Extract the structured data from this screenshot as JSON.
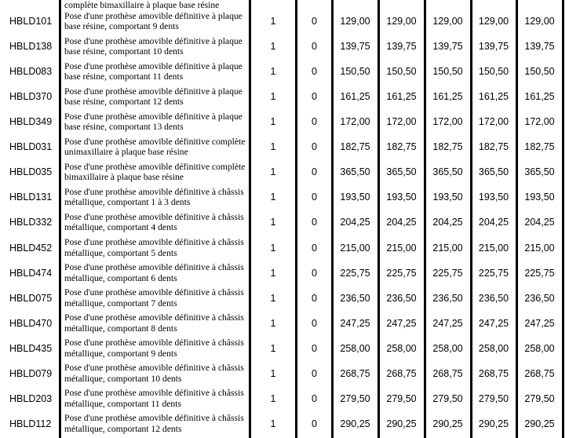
{
  "partial_top_row": {
    "description_line": "complète bimaxillaire à plaque base résine"
  },
  "rows": [
    {
      "code": "HBLD101",
      "description": "Pose d'une prothèse amovible définitive à plaque base résine, comportant 9 dents",
      "c1": "1",
      "c2": "0",
      "prices": [
        "129,00",
        "129,00",
        "129,00",
        "129,00",
        "129,00"
      ]
    },
    {
      "code": "HBLD138",
      "description": "Pose d'une prothèse amovible définitive à plaque base résine, comportant 10 dents",
      "c1": "1",
      "c2": "0",
      "prices": [
        "139,75",
        "139,75",
        "139,75",
        "139,75",
        "139,75"
      ]
    },
    {
      "code": "HBLD083",
      "description": "Pose d'une prothèse amovible définitive à plaque base résine, comportant 11 dents",
      "c1": "1",
      "c2": "0",
      "prices": [
        "150,50",
        "150,50",
        "150,50",
        "150,50",
        "150,50"
      ]
    },
    {
      "code": "HBLD370",
      "description": "Pose d'une prothèse amovible définitive à plaque base résine, comportant 12 dents",
      "c1": "1",
      "c2": "0",
      "prices": [
        "161,25",
        "161,25",
        "161,25",
        "161,25",
        "161,25"
      ]
    },
    {
      "code": "HBLD349",
      "description": "Pose d'une prothèse amovible définitive à plaque base résine, comportant 13 dents",
      "c1": "1",
      "c2": "0",
      "prices": [
        "172,00",
        "172,00",
        "172,00",
        "172,00",
        "172,00"
      ]
    },
    {
      "code": "HBLD031",
      "description": "Pose d'une prothèse amovible définitive complète unimaxillaire à plaque base résine",
      "c1": "1",
      "c2": "0",
      "prices": [
        "182,75",
        "182,75",
        "182,75",
        "182,75",
        "182,75"
      ]
    },
    {
      "code": "HBLD035",
      "description": "Pose d'une prothèse amovible définitive complète bimaxillaire à plaque base résine",
      "c1": "1",
      "c2": "0",
      "prices": [
        "365,50",
        "365,50",
        "365,50",
        "365,50",
        "365,50"
      ]
    },
    {
      "code": "HBLD131",
      "description": "Pose d'une prothèse amovible définitive à châssis métallique, comportant 1 à 3 dents",
      "c1": "1",
      "c2": "0",
      "prices": [
        "193,50",
        "193,50",
        "193,50",
        "193,50",
        "193,50"
      ]
    },
    {
      "code": "HBLD332",
      "description": "Pose d'une prothèse amovible définitive à châssis métallique, comportant 4 dents",
      "c1": "1",
      "c2": "0",
      "prices": [
        "204,25",
        "204,25",
        "204,25",
        "204,25",
        "204,25"
      ]
    },
    {
      "code": "HBLD452",
      "description": "Pose d'une prothèse amovible définitive à châssis métallique, comportant 5 dents",
      "c1": "1",
      "c2": "0",
      "prices": [
        "215,00",
        "215,00",
        "215,00",
        "215,00",
        "215,00"
      ]
    },
    {
      "code": "HBLD474",
      "description": "Pose d'une prothèse amovible définitive à châssis métallique, comportant 6 dents",
      "c1": "1",
      "c2": "0",
      "prices": [
        "225,75",
        "225,75",
        "225,75",
        "225,75",
        "225,75"
      ]
    },
    {
      "code": "HBLD075",
      "description": "Pose d'une prothèse amovible définitive à châssis métallique, comportant 7 dents",
      "c1": "1",
      "c2": "0",
      "prices": [
        "236,50",
        "236,50",
        "236,50",
        "236,50",
        "236,50"
      ]
    },
    {
      "code": "HBLD470",
      "description": "Pose d'une prothèse amovible définitive à châssis métallique, comportant 8 dents",
      "c1": "1",
      "c2": "0",
      "prices": [
        "247,25",
        "247,25",
        "247,25",
        "247,25",
        "247,25"
      ]
    },
    {
      "code": "HBLD435",
      "description": "Pose d'une prothèse amovible définitive à châssis métallique, comportant 9 dents",
      "c1": "1",
      "c2": "0",
      "prices": [
        "258,00",
        "258,00",
        "258,00",
        "258,00",
        "258,00"
      ]
    },
    {
      "code": "HBLD079",
      "description": "Pose d'une prothèse amovible définitive à châssis métallique, comportant 10 dents",
      "c1": "1",
      "c2": "0",
      "prices": [
        "268,75",
        "268,75",
        "268,75",
        "268,75",
        "268,75"
      ]
    },
    {
      "code": "HBLD203",
      "description": "Pose d'une prothèse amovible définitive à châssis métallique, comportant 11 dents",
      "c1": "1",
      "c2": "0",
      "prices": [
        "279,50",
        "279,50",
        "279,50",
        "279,50",
        "279,50"
      ]
    },
    {
      "code": "HBLD112",
      "description": "Pose d'une prothèse amovible définitive à châssis métallique, comportant 12 dents",
      "c1": "1",
      "c2": "0",
      "prices": [
        "290,25",
        "290,25",
        "290,25",
        "290,25",
        "290,25"
      ]
    }
  ]
}
